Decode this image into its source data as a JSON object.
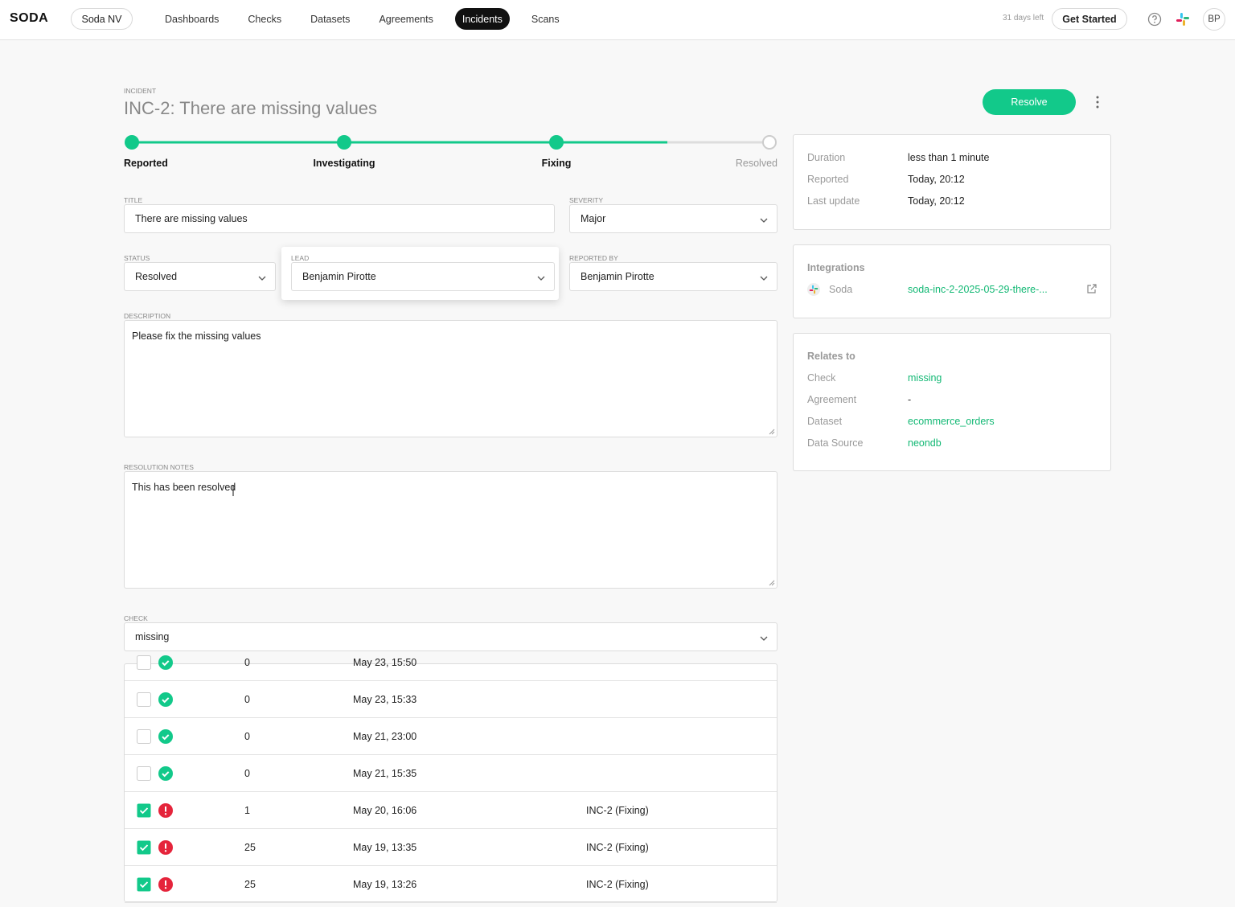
{
  "nav": {
    "logo": "SODA",
    "org": "Soda NV",
    "items": [
      "Dashboards",
      "Checks",
      "Datasets",
      "Agreements",
      "Incidents",
      "Scans"
    ],
    "active": "Incidents",
    "trial": "31 days left",
    "cta": "Get Started",
    "avatar": "BP"
  },
  "header": {
    "label": "INCIDENT",
    "title": "INC-2: There are missing values",
    "resolve": "Resolve"
  },
  "steps": [
    {
      "label": "Reported",
      "done": true
    },
    {
      "label": "Investigating",
      "done": true
    },
    {
      "label": "Fixing",
      "done": true
    },
    {
      "label": "Resolved",
      "done": false
    }
  ],
  "form": {
    "title": {
      "label": "TITLE",
      "value": "There are missing values"
    },
    "severity": {
      "label": "SEVERITY",
      "value": "Major"
    },
    "status": {
      "label": "STATUS",
      "value": "Resolved"
    },
    "lead": {
      "label": "LEAD",
      "value": "Benjamin Pirotte"
    },
    "reported_by": {
      "label": "REPORTED BY",
      "value": "Benjamin Pirotte"
    },
    "description": {
      "label": "DESCRIPTION",
      "value": "Please fix the missing values"
    },
    "resolution_notes": {
      "label": "RESOLUTION NOTES",
      "value": "This has been resolved"
    },
    "check": {
      "label": "CHECK",
      "value": "missing"
    }
  },
  "results": [
    {
      "checked": false,
      "status": "pass",
      "value": "0",
      "time": "May 23, 15:50",
      "incident": null
    },
    {
      "checked": false,
      "status": "pass",
      "value": "0",
      "time": "May 23, 15:33",
      "incident": null
    },
    {
      "checked": false,
      "status": "pass",
      "value": "0",
      "time": "May 21, 23:00",
      "incident": null
    },
    {
      "checked": false,
      "status": "pass",
      "value": "0",
      "time": "May 21, 15:35",
      "incident": null
    },
    {
      "checked": true,
      "status": "fail",
      "value": "1",
      "time": "May 20, 16:06",
      "incident": "INC-2 (Fixing)"
    },
    {
      "checked": true,
      "status": "fail",
      "value": "25",
      "time": "May 19, 13:35",
      "incident": "INC-2 (Fixing)"
    },
    {
      "checked": true,
      "status": "fail",
      "value": "25",
      "time": "May 19, 13:26",
      "incident": "INC-2 (Fixing)"
    }
  ],
  "summary": [
    {
      "label": "Duration",
      "value": "less than 1 minute"
    },
    {
      "label": "Reported",
      "value": "Today, 20:12"
    },
    {
      "label": "Last update",
      "value": "Today, 20:12"
    }
  ],
  "integrations": {
    "title": "Integrations",
    "name": "Soda",
    "link": "soda-inc-2-2025-05-29-there-..."
  },
  "relates": {
    "title": "Relates to",
    "rows": [
      {
        "label": "Check",
        "value": "missing",
        "link": true
      },
      {
        "label": "Agreement",
        "value": "-",
        "link": false
      },
      {
        "label": "Dataset",
        "value": "ecommerce_orders",
        "link": true
      },
      {
        "label": "Data Source",
        "value": "neondb",
        "link": true
      }
    ]
  }
}
